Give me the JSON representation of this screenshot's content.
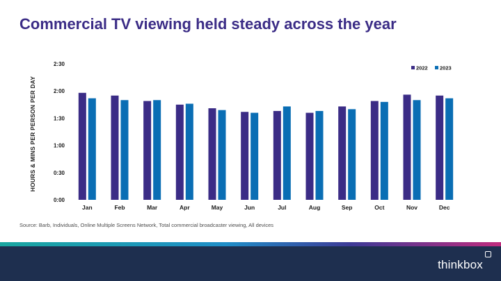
{
  "title": "Commercial TV viewing held steady across the year",
  "source": "Source: Barb, Individuals, Online Multiple Screens Network, Total commercial broadcaster viewing, All devices",
  "brand": "thinkbox",
  "chart_data": {
    "type": "bar",
    "ylabel": "HOURS & MINS PER PERSON PER DAY",
    "ylim_minutes": [
      0,
      150
    ],
    "yticks": [
      "0:00",
      "0:30",
      "1:00",
      "1:30",
      "2:00",
      "2:30"
    ],
    "legend_position": "top-right",
    "categories": [
      "Jan",
      "Feb",
      "Mar",
      "Apr",
      "May",
      "Jun",
      "Jul",
      "Aug",
      "Sep",
      "Oct",
      "Nov",
      "Dec"
    ],
    "series": [
      {
        "name": "2022",
        "color": "#3b2c86",
        "values_minutes": [
          118,
          115,
          109,
          105,
          101,
          97,
          98,
          96,
          103,
          109,
          116,
          115
        ]
      },
      {
        "name": "2023",
        "color": "#0a6eb4",
        "values_minutes": [
          112,
          110,
          110,
          106,
          99,
          96,
          103,
          98,
          100,
          108,
          110,
          112
        ]
      }
    ]
  }
}
